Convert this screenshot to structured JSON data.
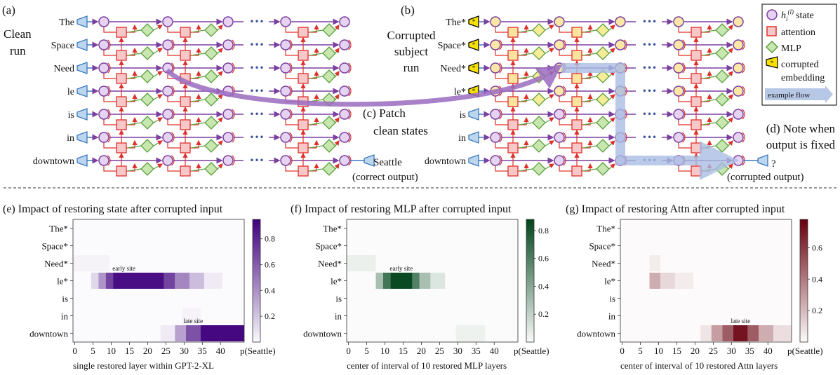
{
  "top": {
    "a": {
      "label": "(a)",
      "title_lines": [
        "Clean",
        "run"
      ],
      "tokens": [
        "The",
        "Space",
        "Need",
        "le",
        "is",
        "in",
        "downtown"
      ],
      "output_label": "Seattle",
      "output_note": "(correct output)"
    },
    "b": {
      "label": "(b)",
      "title_lines": [
        "Corrupted",
        "subject",
        "run"
      ],
      "tokens": [
        "The*",
        "Space*",
        "Need*",
        "le*",
        "is",
        "in",
        "downtown"
      ],
      "output_label": "?",
      "output_note": "(corrupted output)"
    },
    "c": {
      "label_lines": [
        "(c) Patch",
        "clean states"
      ]
    },
    "d": {
      "label_lines": [
        "(d) Note when",
        "output is fixed"
      ]
    },
    "legend": {
      "state_symbol": "h",
      "state_sub": "i",
      "state_sup": "(l)",
      "state_text": "state",
      "attention": "attention",
      "mlp": "MLP",
      "corrupted_lines": [
        "corrupted",
        "embedding"
      ],
      "flow": "example flow",
      "colors": {
        "state": "#7b3fa0",
        "attention": "#e0302b",
        "mlp": "#5aa03c",
        "embedding": "#3a78c0",
        "corrupted": "#f7e000",
        "flow": "#b7c8e6"
      }
    },
    "dots_glyph": "•••"
  },
  "heatmaps": [
    {
      "label": "(e)",
      "title": "Impact of restoring state after corrupted input",
      "rows": [
        "The*",
        "Space*",
        "Need*",
        "le*",
        "is",
        "in",
        "downtown"
      ],
      "x_ticks": [
        "0",
        "5",
        "10",
        "15",
        "20",
        "25",
        "30",
        "35",
        "40"
      ],
      "x_label": "single restored layer within GPT-2-XL",
      "colorbar_ticks": [
        "0.8",
        "0.6",
        "0.4",
        "0.2"
      ],
      "colorbar_label": "p(Seattle)",
      "color": "#3f007d",
      "vmax": 0.95,
      "annotations": [
        {
          "text": "early site",
          "row": 3,
          "x": 14
        },
        {
          "text": "late site",
          "row": 6,
          "x": 33
        }
      ],
      "chart_data": {
        "type": "heatmap",
        "x_range": [
          0,
          47
        ],
        "cells": [
          {
            "row": 2,
            "x": [
              0,
              10
            ],
            "v": 0.05
          },
          {
            "row": 3,
            "x": [
              5,
              7
            ],
            "v": 0.15
          },
          {
            "row": 3,
            "x": [
              7,
              9
            ],
            "v": 0.4
          },
          {
            "row": 3,
            "x": [
              9,
              11
            ],
            "v": 0.7
          },
          {
            "row": 3,
            "x": [
              11,
              25
            ],
            "v": 0.9
          },
          {
            "row": 3,
            "x": [
              25,
              28
            ],
            "v": 0.7
          },
          {
            "row": 3,
            "x": [
              28,
              32
            ],
            "v": 0.45
          },
          {
            "row": 3,
            "x": [
              32,
              36
            ],
            "v": 0.25
          },
          {
            "row": 3,
            "x": [
              36,
              41
            ],
            "v": 0.08
          },
          {
            "row": 5,
            "x": [
              30,
              35
            ],
            "v": 0.05
          },
          {
            "row": 6,
            "x": [
              24,
              28
            ],
            "v": 0.08
          },
          {
            "row": 6,
            "x": [
              28,
              31
            ],
            "v": 0.35
          },
          {
            "row": 6,
            "x": [
              31,
              35
            ],
            "v": 0.65
          },
          {
            "row": 6,
            "x": [
              35,
              47
            ],
            "v": 0.92
          }
        ]
      }
    },
    {
      "label": "(f)",
      "title": "Impact of restoring MLP after corrupted input",
      "rows": [
        "The*",
        "Space*",
        "Need*",
        "le*",
        "is",
        "in",
        "downtown"
      ],
      "x_ticks": [
        "0",
        "5",
        "10",
        "15",
        "20",
        "25",
        "30",
        "35",
        "40"
      ],
      "x_label": "center of interval of 10 restored MLP layers",
      "colorbar_ticks": [
        "0.8",
        "0.6",
        "0.4",
        "0.2"
      ],
      "colorbar_label": "p(Seattle)",
      "color": "#00441b",
      "vmax": 0.88,
      "annotations": [
        {
          "text": "early site",
          "row": 3,
          "x": 15
        }
      ],
      "chart_data": {
        "type": "heatmap",
        "x_range": [
          0,
          47
        ],
        "cells": [
          {
            "row": 2,
            "x": [
              0,
              8
            ],
            "v": 0.07
          },
          {
            "row": 3,
            "x": [
              8,
              10
            ],
            "v": 0.3
          },
          {
            "row": 3,
            "x": [
              10,
              12
            ],
            "v": 0.65
          },
          {
            "row": 3,
            "x": [
              12,
              18
            ],
            "v": 0.85
          },
          {
            "row": 3,
            "x": [
              18,
              20
            ],
            "v": 0.6
          },
          {
            "row": 3,
            "x": [
              20,
              23
            ],
            "v": 0.3
          },
          {
            "row": 3,
            "x": [
              23,
              27
            ],
            "v": 0.12
          },
          {
            "row": 6,
            "x": [
              30,
              38
            ],
            "v": 0.06
          }
        ]
      }
    },
    {
      "label": "(g)",
      "title": "Impact of restoring Attn after corrupted input",
      "rows": [
        "The*",
        "Space*",
        "Need*",
        "le*",
        "is",
        "in",
        "downtown"
      ],
      "x_ticks": [
        "0",
        "5",
        "10",
        "15",
        "20",
        "25",
        "30",
        "35",
        "40"
      ],
      "x_label": "center of interval of 10 restored Attn layers",
      "colorbar_ticks": [
        "0.6",
        "0.4",
        "0.2"
      ],
      "colorbar_label": "p(Seattle)",
      "color": "#67000d",
      "vmax": 0.78,
      "annotations": [
        {
          "text": "late site",
          "row": 6,
          "x": 33
        }
      ],
      "chart_data": {
        "type": "heatmap",
        "x_range": [
          0,
          47
        ],
        "cells": [
          {
            "row": 2,
            "x": [
              8,
              11
            ],
            "v": 0.06
          },
          {
            "row": 3,
            "x": [
              8,
              11
            ],
            "v": 0.25
          },
          {
            "row": 3,
            "x": [
              11,
              15
            ],
            "v": 0.12
          },
          {
            "row": 3,
            "x": [
              15,
              20
            ],
            "v": 0.06
          },
          {
            "row": 6,
            "x": [
              22,
              25
            ],
            "v": 0.08
          },
          {
            "row": 6,
            "x": [
              25,
              28
            ],
            "v": 0.3
          },
          {
            "row": 6,
            "x": [
              28,
              31
            ],
            "v": 0.5
          },
          {
            "row": 6,
            "x": [
              31,
              35
            ],
            "v": 0.72
          },
          {
            "row": 6,
            "x": [
              35,
              38
            ],
            "v": 0.5
          },
          {
            "row": 6,
            "x": [
              38,
              42
            ],
            "v": 0.25
          },
          {
            "row": 6,
            "x": [
              42,
              47
            ],
            "v": 0.1
          }
        ]
      }
    }
  ]
}
